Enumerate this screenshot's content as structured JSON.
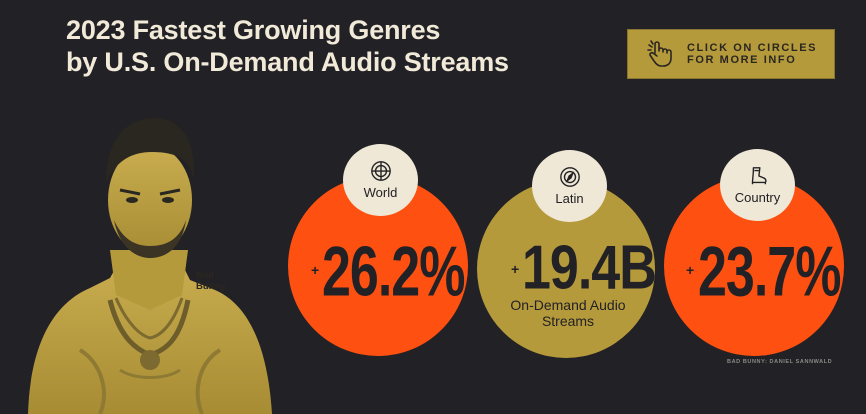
{
  "title": {
    "line1": "2023 Fastest Growing Genres",
    "line2": "by U.S. On-Demand Audio Streams"
  },
  "cta": {
    "line1": "CLICK ON CIRCLES",
    "line2": "FOR MORE INFO",
    "icon": "pointing-hand-icon"
  },
  "person": {
    "label_line1": "Bad",
    "label_line2": "Bunny"
  },
  "genres": [
    {
      "name": "World",
      "plus": "+",
      "value": "26.2%",
      "icon": "globe-icon",
      "color": "#fe5011"
    },
    {
      "name": "Latin",
      "plus": "+",
      "value": "19.4B",
      "sub": "On-Demand Audio Streams",
      "icon": "compass-globe-icon",
      "color": "#b59a3c"
    },
    {
      "name": "Country",
      "plus": "+",
      "value": "23.7%",
      "icon": "cowboy-boot-icon",
      "color": "#fe5011"
    }
  ],
  "credit": "BAD BUNNY: DANIEL SANNWALD",
  "colors": {
    "background": "#222125",
    "accent_orange": "#fe5011",
    "accent_gold": "#b59a3c",
    "cream": "#efe8d6"
  }
}
